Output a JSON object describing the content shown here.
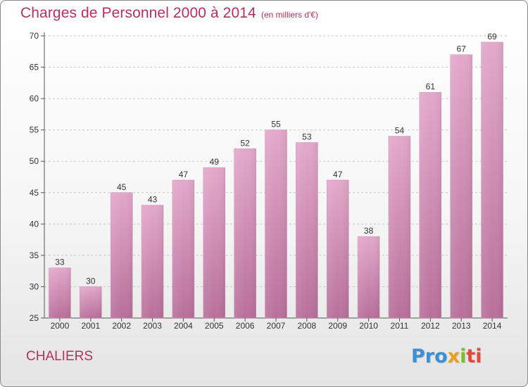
{
  "header": {
    "title": "Charges de Personnel 2000 à 2014",
    "subtitle": "(en milliers d'€)"
  },
  "footer": {
    "commune": "CHALIERS",
    "logo": [
      "Pro",
      "x",
      "i",
      "ti"
    ]
  },
  "colors": {
    "title": "#b5305f",
    "bar_top": "#e3a8ca",
    "bar_bottom": "#b8709a",
    "grid": "#c8c8c8"
  },
  "chart_data": {
    "type": "bar",
    "title": "Charges de Personnel 2000 à 2014",
    "subtitle": "(en milliers d'€)",
    "categories": [
      "2000",
      "2001",
      "2002",
      "2003",
      "2004",
      "2005",
      "2006",
      "2007",
      "2008",
      "2009",
      "2010",
      "2011",
      "2012",
      "2013",
      "2014"
    ],
    "values": [
      33,
      30,
      45,
      43,
      47,
      49,
      52,
      55,
      53,
      47,
      38,
      54,
      61,
      67,
      69
    ],
    "ylim": [
      25,
      70
    ],
    "yticks": [
      25,
      30,
      35,
      40,
      45,
      50,
      55,
      60,
      65,
      70
    ],
    "grid": true
  }
}
